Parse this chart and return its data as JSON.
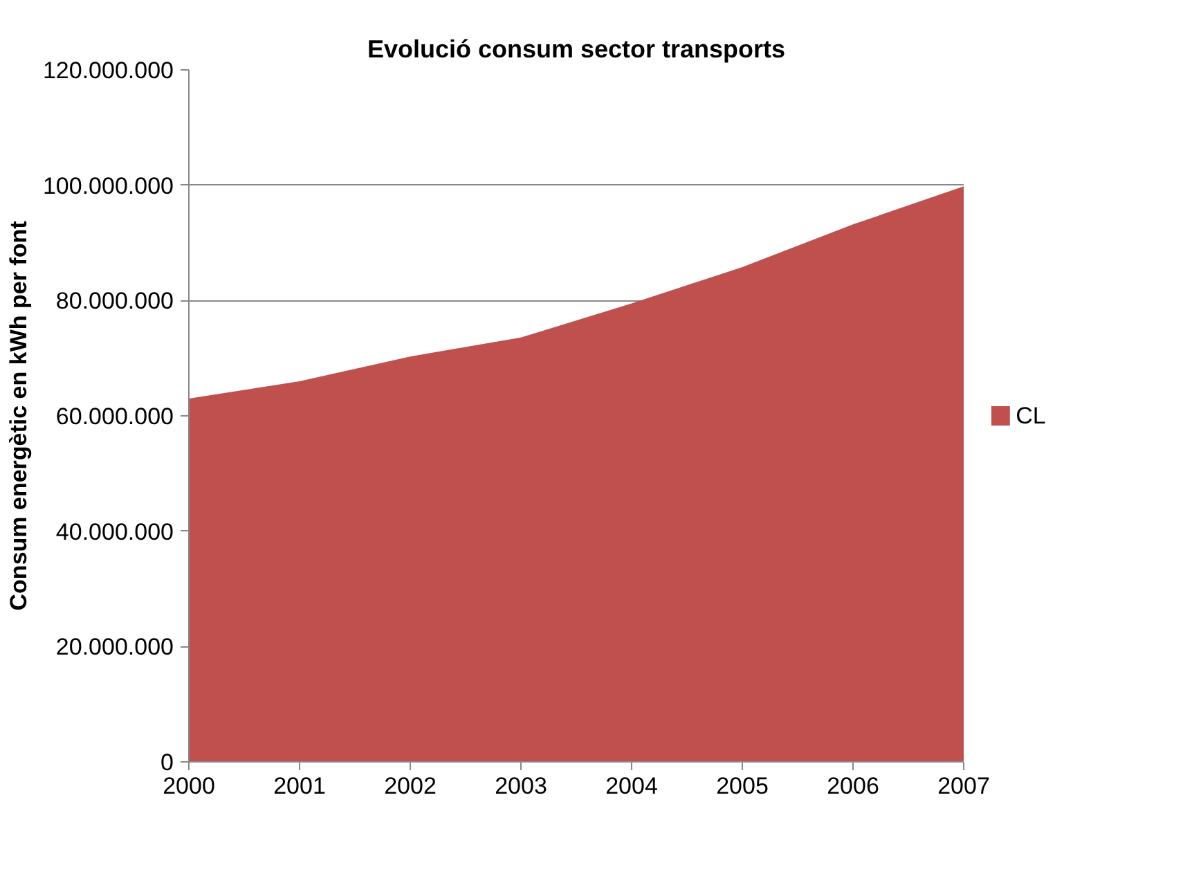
{
  "chart_data": {
    "type": "area",
    "title": "Evolució consum sector transports",
    "ylabel": "Consum energètic en kWh per font",
    "x": [
      2000,
      2001,
      2002,
      2003,
      2004,
      2005,
      2006,
      2007
    ],
    "series": [
      {
        "name": "CL",
        "color": "#c0504d",
        "values": [
          63000000,
          66000000,
          70300000,
          73600000,
          79500000,
          85800000,
          93200000,
          99800000
        ]
      }
    ],
    "xlim": [
      2000,
      2007
    ],
    "xticks": [
      2000,
      2001,
      2002,
      2003,
      2004,
      2005,
      2006,
      2007
    ],
    "ylim": [
      0,
      120000000
    ],
    "yticks": [
      0,
      {
        "value": 20000000,
        "label": "20.000.000"
      },
      {
        "value": 40000000,
        "label": "40.000.000"
      },
      {
        "value": 60000000,
        "label": "60.000.000"
      },
      {
        "value": 80000000,
        "label": "80.000.000"
      },
      {
        "value": 100000000,
        "label": "100.000.000"
      },
      {
        "value": 120000000,
        "label": "120.000.000"
      }
    ],
    "grid": "y",
    "legend": "right"
  }
}
